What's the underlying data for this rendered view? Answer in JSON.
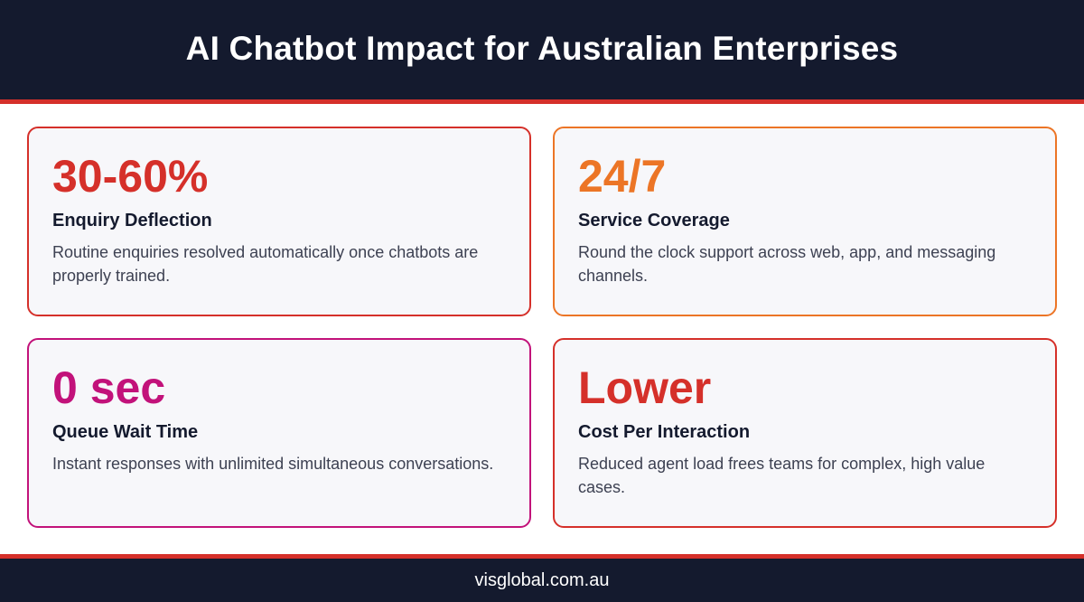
{
  "header": {
    "title": "AI Chatbot Impact for Australian Enterprises"
  },
  "theme": {
    "navy": "#141a2e",
    "accent_red": "#d5302a",
    "card_bg": "#f7f7fa"
  },
  "cards": [
    {
      "metric": "30-60%",
      "label": "Enquiry Deflection",
      "description": "Routine enquiries resolved automatically once chatbots are properly trained.",
      "color": "#d5302a"
    },
    {
      "metric": "24/7",
      "label": "Service Coverage",
      "description": "Round the clock support across web, app, and messaging channels.",
      "color": "#ec7526"
    },
    {
      "metric": "0 sec",
      "label": "Queue Wait Time",
      "description": "Instant responses with unlimited simultaneous conversations.",
      "color": "#c2127a"
    },
    {
      "metric": "Lower",
      "label": "Cost Per Interaction",
      "description": "Reduced agent load frees teams for complex, high value cases.",
      "color": "#d5302a"
    }
  ],
  "footer": {
    "site": "visglobal.com.au"
  }
}
